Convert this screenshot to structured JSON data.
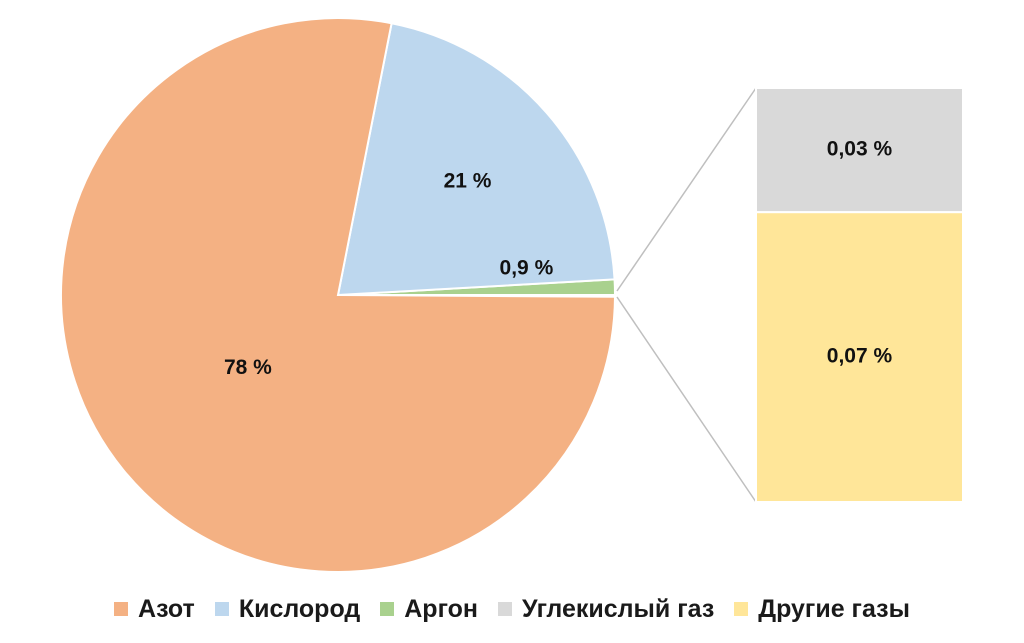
{
  "chart_data": {
    "type": "pie",
    "categories": [
      "Азот",
      "Кислород",
      "Аргон",
      "Углекислый газ",
      "Другие газы"
    ],
    "values": [
      78,
      21,
      0.9,
      0.03,
      0.07
    ],
    "data_labels": [
      "78 %",
      "21 %",
      "0,9 %",
      "0,03 %",
      "0,07 %"
    ],
    "colors": [
      "#F4B183",
      "#BDD7EE",
      "#A9D18E",
      "#D9D9D9",
      "#FFE699"
    ],
    "breakout": {
      "type": "stacked-bar",
      "categories": [
        "Углекислый газ",
        "Другие газы"
      ],
      "values": [
        0.03,
        0.07
      ]
    },
    "legend_position": "bottom",
    "title": "",
    "grid": false
  },
  "legend": {
    "items": [
      {
        "label": "Азот",
        "color": "#F4B183"
      },
      {
        "label": "Кислород",
        "color": "#BDD7EE"
      },
      {
        "label": "Аргон",
        "color": "#A9D18E"
      },
      {
        "label": "Углекислый газ",
        "color": "#D9D9D9"
      },
      {
        "label": "Другие газы",
        "color": "#FFE699"
      }
    ]
  }
}
